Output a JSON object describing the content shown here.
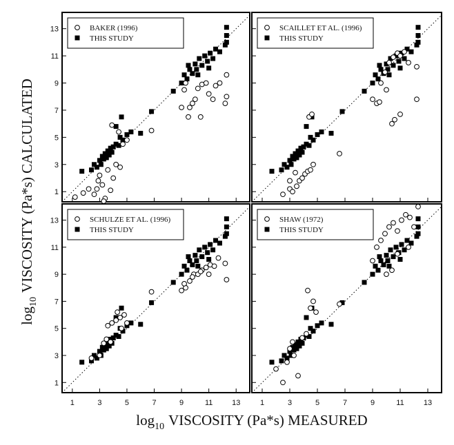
{
  "x_label": {
    "base": "log",
    "sub": "10",
    "rest": "VISCOSITY (Pa*s) MEASURED"
  },
  "y_label": {
    "base": "log",
    "sub": "10",
    "rest": "VISCOSITY (Pa*s) CALCULATED"
  },
  "chart_data": [
    {
      "type": "scatter",
      "xlim": [
        0.25,
        14
      ],
      "ylim": [
        0.25,
        14.2
      ],
      "xticks": [
        1,
        3,
        5,
        7,
        9,
        11,
        13
      ],
      "yticks": [
        1,
        3,
        5,
        7,
        9,
        11,
        13
      ],
      "xtick_labels": false,
      "ytick_labels": true,
      "identity_line": true,
      "series": [
        {
          "name": "BAKER (1996)",
          "marker": "open-circle",
          "color": "#000000",
          "x": [
            1.2,
            1.8,
            2.2,
            2.6,
            2.9,
            3.0,
            3.2,
            3.4,
            3.6,
            3.8,
            4.0,
            4.2,
            4.5,
            4.7,
            4.4,
            3.9,
            3.3,
            2.8,
            5.0,
            6.8,
            9.0,
            9.2,
            9.5,
            9.8,
            10.0,
            10.2,
            10.5,
            10.8,
            11.0,
            11.5,
            11.8,
            12.3,
            12.3,
            9.3,
            9.6,
            10.4,
            11.3,
            12.2
          ],
          "values": [
            0.6,
            0.9,
            1.2,
            0.8,
            1.8,
            2.2,
            1.5,
            0.5,
            2.6,
            1.1,
            2.0,
            3.0,
            2.8,
            4.5,
            5.4,
            5.9,
            0.3,
            1.2,
            4.8,
            5.5,
            7.2,
            8.5,
            6.5,
            7.5,
            7.8,
            8.6,
            8.9,
            9.0,
            8.2,
            8.8,
            9.0,
            9.6,
            8.0,
            9.0,
            7.2,
            6.5,
            7.8,
            7.5
          ]
        },
        {
          "name": "THIS STUDY",
          "marker": "filled-square",
          "color": "#000000",
          "x": [
            1.7,
            2.4,
            2.6,
            2.8,
            3.0,
            3.1,
            3.2,
            3.3,
            3.4,
            3.5,
            3.6,
            3.7,
            3.8,
            3.9,
            4.0,
            4.2,
            4.4,
            4.5,
            4.7,
            5.0,
            5.3,
            4.6,
            4.2,
            6.0,
            6.8,
            8.4,
            9.0,
            9.2,
            9.4,
            9.6,
            9.8,
            10.0,
            10.1,
            10.3,
            10.5,
            10.7,
            10.9,
            11.1,
            11.3,
            11.5,
            11.8,
            12.2,
            12.3,
            12.3,
            12.3,
            9.5,
            10.2,
            11.0
          ],
          "values": [
            2.5,
            2.6,
            3.0,
            2.8,
            3.3,
            3.0,
            3.6,
            3.4,
            3.8,
            3.5,
            4.0,
            3.7,
            4.2,
            3.9,
            4.3,
            4.5,
            4.4,
            5.0,
            4.8,
            5.2,
            5.4,
            6.5,
            5.8,
            5.3,
            6.9,
            8.4,
            9.0,
            9.6,
            9.3,
            10.0,
            9.7,
            10.4,
            10.0,
            10.8,
            10.3,
            11.0,
            10.6,
            11.2,
            10.8,
            11.5,
            11.3,
            11.8,
            12.5,
            13.1,
            12.0,
            10.3,
            9.6,
            10.1
          ]
        }
      ]
    },
    {
      "type": "scatter",
      "xlim": [
        0.25,
        14
      ],
      "ylim": [
        0.25,
        14.2
      ],
      "xticks": [
        1,
        3,
        5,
        7,
        9,
        11,
        13
      ],
      "yticks": [
        1,
        3,
        5,
        7,
        9,
        11,
        13
      ],
      "xtick_labels": false,
      "ytick_labels": false,
      "identity_line": true,
      "series": [
        {
          "name": "SCAILLET ET AL. (1996)",
          "marker": "open-circle",
          "color": "#000000",
          "x": [
            2.5,
            3.0,
            3.2,
            3.5,
            3.7,
            3.9,
            4.1,
            4.3,
            4.5,
            4.7,
            3.4,
            3.0,
            4.4,
            4.6,
            6.6,
            9.0,
            9.3,
            9.6,
            9.9,
            10.2,
            10.5,
            10.8,
            11.0,
            11.3,
            11.6,
            12.2,
            10.0,
            10.4,
            10.6,
            11.0,
            12.2,
            9.5
          ],
          "values": [
            0.8,
            1.2,
            1.0,
            1.4,
            1.8,
            2.0,
            2.3,
            2.5,
            2.6,
            3.0,
            2.4,
            1.8,
            6.5,
            6.7,
            3.8,
            7.8,
            7.5,
            9.0,
            9.8,
            10.5,
            10.9,
            11.2,
            11.0,
            11.3,
            10.5,
            10.2,
            8.5,
            6.0,
            6.3,
            6.7,
            7.8,
            7.6
          ]
        },
        {
          "name": "THIS STUDY",
          "marker": "filled-square",
          "color": "#000000",
          "x": [
            1.7,
            2.4,
            2.6,
            2.8,
            3.0,
            3.1,
            3.2,
            3.3,
            3.4,
            3.5,
            3.6,
            3.7,
            3.8,
            3.9,
            4.0,
            4.2,
            4.4,
            4.5,
            4.7,
            5.0,
            5.3,
            4.6,
            4.2,
            6.0,
            6.8,
            8.4,
            9.0,
            9.2,
            9.4,
            9.6,
            9.8,
            10.0,
            10.1,
            10.3,
            10.5,
            10.7,
            10.9,
            11.1,
            11.3,
            11.5,
            11.8,
            12.2,
            12.3,
            12.3,
            12.3,
            9.5,
            10.2,
            11.0
          ],
          "values": [
            2.5,
            2.6,
            3.0,
            2.8,
            3.3,
            3.0,
            3.6,
            3.4,
            3.8,
            3.5,
            4.0,
            3.7,
            4.2,
            3.9,
            4.3,
            4.5,
            4.4,
            5.0,
            4.8,
            5.2,
            5.4,
            6.5,
            5.8,
            5.3,
            6.9,
            8.4,
            9.0,
            9.6,
            9.3,
            10.0,
            9.7,
            10.4,
            10.0,
            10.8,
            10.3,
            11.0,
            10.6,
            11.2,
            10.8,
            11.5,
            11.3,
            11.8,
            12.5,
            13.1,
            12.0,
            10.3,
            9.6,
            10.1
          ]
        }
      ]
    },
    {
      "type": "scatter",
      "xlim": [
        0.25,
        14
      ],
      "ylim": [
        0.25,
        14.2
      ],
      "xticks": [
        1,
        3,
        5,
        7,
        9,
        11,
        13
      ],
      "yticks": [
        1,
        3,
        5,
        7,
        9,
        11,
        13
      ],
      "xtick_labels": true,
      "ytick_labels": true,
      "identity_line": true,
      "series": [
        {
          "name": "SCHULZE ET AL. (1996)",
          "marker": "open-circle",
          "color": "#000000",
          "x": [
            2.4,
            3.0,
            3.3,
            3.6,
            3.9,
            4.2,
            4.5,
            4.8,
            5.0,
            3.5,
            3.8,
            4.3,
            4.6,
            6.8,
            9.0,
            9.3,
            9.6,
            9.9,
            10.2,
            10.5,
            10.8,
            11.1,
            11.4,
            11.7,
            12.2,
            12.3,
            9.2,
            9.8,
            10.4,
            11.0
          ],
          "values": [
            2.8,
            3.0,
            3.9,
            5.2,
            5.4,
            5.6,
            5.8,
            6.0,
            5.4,
            4.2,
            4.0,
            6.2,
            5.0,
            7.7,
            7.8,
            8.0,
            8.5,
            9.0,
            9.0,
            9.3,
            9.5,
            9.7,
            9.6,
            10.2,
            9.8,
            8.6,
            8.3,
            8.8,
            9.2,
            9.0
          ]
        },
        {
          "name": "THIS STUDY",
          "marker": "filled-square",
          "color": "#000000",
          "x": [
            1.7,
            2.4,
            2.6,
            2.8,
            3.0,
            3.1,
            3.2,
            3.3,
            3.4,
            3.5,
            3.6,
            3.7,
            3.8,
            3.9,
            4.0,
            4.2,
            4.4,
            4.5,
            4.7,
            5.0,
            5.3,
            4.6,
            4.2,
            6.0,
            6.8,
            8.4,
            9.0,
            9.2,
            9.4,
            9.6,
            9.8,
            10.0,
            10.1,
            10.3,
            10.5,
            10.7,
            10.9,
            11.1,
            11.3,
            11.5,
            11.8,
            12.2,
            12.3,
            12.3,
            12.3,
            9.5,
            10.2,
            11.0
          ],
          "values": [
            2.5,
            2.6,
            3.0,
            2.8,
            3.3,
            3.0,
            3.6,
            3.4,
            3.8,
            3.5,
            4.0,
            3.7,
            4.2,
            3.9,
            4.3,
            4.5,
            4.4,
            5.0,
            4.8,
            5.2,
            5.4,
            6.5,
            5.8,
            5.3,
            6.9,
            8.4,
            9.0,
            9.6,
            9.3,
            10.0,
            9.7,
            10.4,
            10.0,
            10.8,
            10.3,
            11.0,
            10.6,
            11.2,
            10.8,
            11.5,
            11.3,
            11.8,
            12.5,
            13.1,
            12.0,
            10.3,
            9.6,
            10.1
          ]
        }
      ]
    },
    {
      "type": "scatter",
      "xlim": [
        0.25,
        14
      ],
      "ylim": [
        0.25,
        14.2
      ],
      "xticks": [
        1,
        3,
        5,
        7,
        9,
        11,
        13
      ],
      "yticks": [
        1,
        3,
        5,
        7,
        9,
        11,
        13
      ],
      "xtick_labels": true,
      "ytick_labels": false,
      "identity_line": true,
      "series": [
        {
          "name": "SHAW (1972)",
          "marker": "open-circle",
          "color": "#000000",
          "x": [
            2.0,
            2.5,
            2.8,
            3.0,
            3.3,
            3.6,
            3.9,
            4.2,
            4.5,
            4.7,
            4.9,
            4.3,
            3.2,
            6.6,
            9.0,
            9.3,
            9.6,
            9.9,
            10.2,
            10.5,
            10.8,
            11.1,
            11.4,
            11.7,
            12.0,
            12.3,
            10.0,
            10.4,
            10.8,
            11.6
          ],
          "values": [
            2.0,
            1.0,
            2.5,
            3.5,
            3.0,
            1.5,
            4.3,
            4.6,
            6.5,
            7.0,
            6.2,
            7.8,
            4.0,
            6.8,
            10.0,
            11.0,
            11.5,
            12.0,
            12.5,
            12.8,
            12.2,
            13.0,
            13.4,
            13.2,
            12.5,
            14.0,
            9.0,
            9.3,
            10.5,
            11.0
          ]
        },
        {
          "name": "THIS STUDY",
          "marker": "filled-square",
          "color": "#000000",
          "x": [
            1.7,
            2.4,
            2.6,
            2.8,
            3.0,
            3.1,
            3.2,
            3.3,
            3.4,
            3.5,
            3.6,
            3.7,
            3.8,
            3.9,
            4.0,
            4.2,
            4.4,
            4.5,
            4.7,
            5.0,
            5.3,
            4.6,
            4.2,
            6.0,
            6.8,
            8.4,
            9.0,
            9.2,
            9.4,
            9.6,
            9.8,
            10.0,
            10.1,
            10.3,
            10.5,
            10.7,
            10.9,
            11.1,
            11.3,
            11.5,
            11.8,
            12.2,
            12.3,
            12.3,
            12.3,
            9.5,
            10.2,
            11.0
          ],
          "values": [
            2.5,
            2.6,
            3.0,
            2.8,
            3.3,
            3.0,
            3.6,
            3.4,
            3.8,
            3.5,
            4.0,
            3.7,
            4.2,
            3.9,
            4.3,
            4.5,
            4.4,
            5.0,
            4.8,
            5.2,
            5.4,
            6.5,
            5.8,
            5.3,
            6.9,
            8.4,
            9.0,
            9.6,
            9.3,
            10.0,
            9.7,
            10.4,
            10.0,
            10.8,
            10.3,
            11.0,
            10.6,
            11.2,
            10.8,
            11.5,
            11.3,
            11.8,
            12.5,
            13.1,
            12.0,
            10.3,
            9.6,
            10.1
          ]
        }
      ]
    }
  ]
}
